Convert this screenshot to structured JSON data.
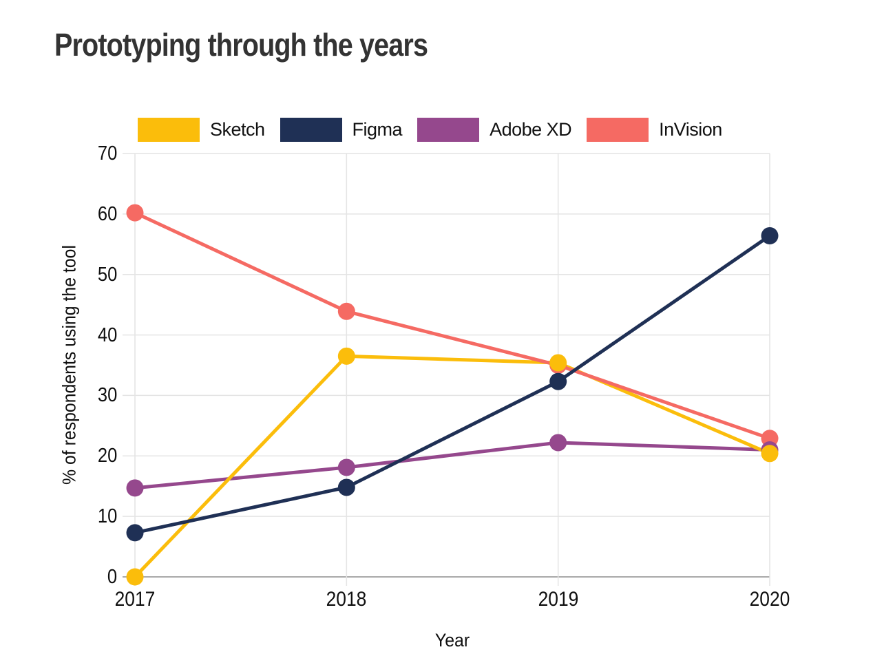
{
  "page": {
    "title": "Prototyping through the years"
  },
  "chart_data": {
    "type": "line",
    "title": "Prototyping through the years",
    "xlabel": "Year",
    "ylabel": "% of respondents using the tool",
    "categories": [
      "2017",
      "2018",
      "2019",
      "2020"
    ],
    "series": [
      {
        "name": "Sketch",
        "color": "#FBBD0B",
        "values": [
          0,
          36.5,
          35.4,
          20.4
        ]
      },
      {
        "name": "Figma",
        "color": "#1F3055",
        "values": [
          7.3,
          14.8,
          32.3,
          56.4
        ]
      },
      {
        "name": "Adobe XD",
        "color": "#95488D",
        "values": [
          14.7,
          18.1,
          22.2,
          21.0
        ]
      },
      {
        "name": "InVision",
        "color": "#F56A63",
        "values": [
          60.2,
          43.9,
          35.0,
          22.9
        ]
      }
    ],
    "ylim": [
      0,
      70
    ],
    "yticks": [
      0,
      10,
      20,
      30,
      40,
      50,
      60,
      70
    ],
    "grid": true,
    "legend_position": "top"
  },
  "colors": {
    "grid": "#E4E4E4",
    "zero_axis": "#A9A9A9",
    "text": "#0F0F0F",
    "title": "#333333",
    "background": "#FFFFFF"
  }
}
